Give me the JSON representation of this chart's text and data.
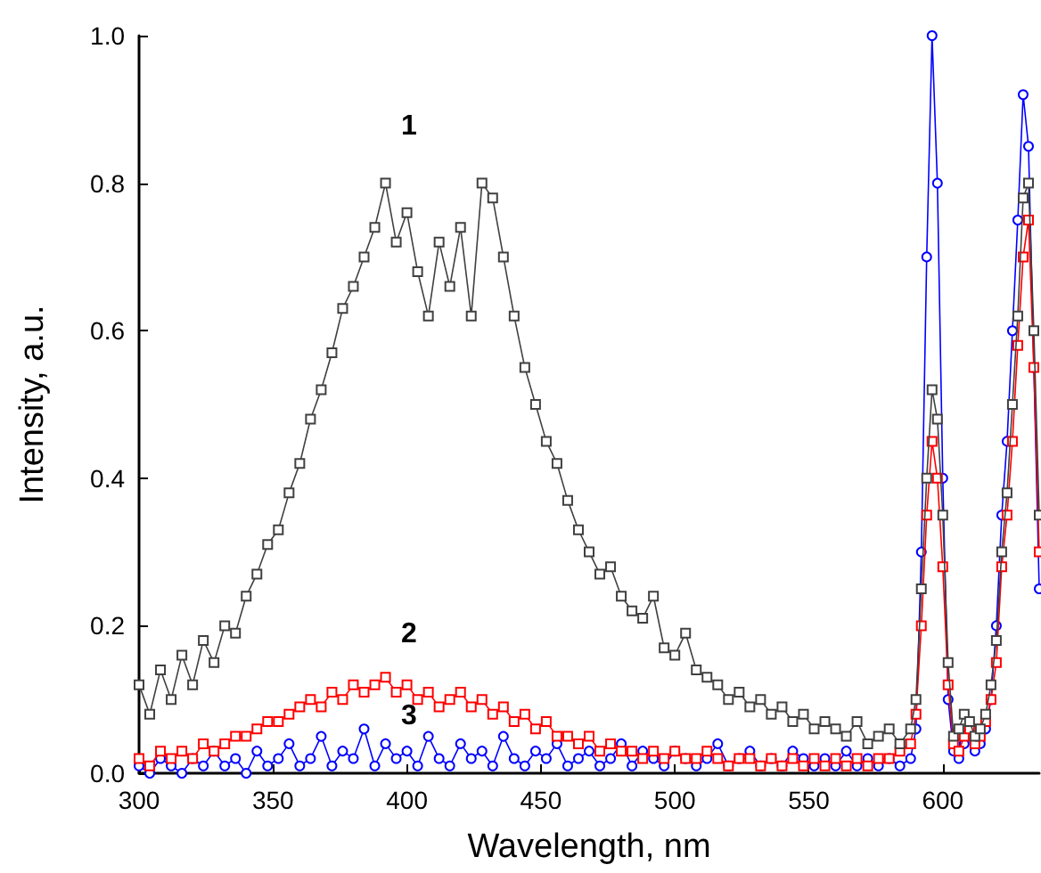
{
  "chart_data": {
    "type": "line",
    "xlabel": "Wavelength, nm",
    "ylabel": "Intensity, a.u.",
    "x": [
      300,
      304,
      308,
      312,
      316,
      320,
      324,
      328,
      332,
      336,
      340,
      344,
      348,
      352,
      356,
      360,
      364,
      368,
      372,
      376,
      380,
      384,
      388,
      392,
      396,
      400,
      404,
      408,
      412,
      416,
      420,
      424,
      428,
      432,
      436,
      440,
      444,
      448,
      452,
      456,
      460,
      464,
      468,
      472,
      476,
      480,
      484,
      488,
      492,
      496,
      500,
      504,
      508,
      512,
      516,
      520,
      524,
      528,
      532,
      536,
      540,
      544,
      548,
      552,
      556,
      560,
      564,
      568,
      572,
      576,
      580,
      584,
      588,
      590,
      592,
      594,
      596,
      598,
      600,
      602,
      604,
      606,
      608,
      610,
      612,
      614,
      616,
      618,
      620,
      622,
      624,
      626,
      628,
      630,
      632,
      634,
      636
    ],
    "series": [
      {
        "color": "#404040",
        "marker": "square",
        "values": [
          0.12,
          0.08,
          0.14,
          0.1,
          0.16,
          0.12,
          0.18,
          0.15,
          0.2,
          0.19,
          0.24,
          0.27,
          0.31,
          0.33,
          0.38,
          0.42,
          0.48,
          0.52,
          0.57,
          0.63,
          0.66,
          0.7,
          0.74,
          0.8,
          0.72,
          0.76,
          0.68,
          0.62,
          0.72,
          0.66,
          0.74,
          0.62,
          0.8,
          0.78,
          0.7,
          0.62,
          0.55,
          0.5,
          0.45,
          0.42,
          0.37,
          0.33,
          0.3,
          0.27,
          0.28,
          0.24,
          0.22,
          0.21,
          0.24,
          0.17,
          0.16,
          0.19,
          0.14,
          0.13,
          0.12,
          0.1,
          0.11,
          0.09,
          0.1,
          0.08,
          0.09,
          0.07,
          0.08,
          0.06,
          0.07,
          0.06,
          0.05,
          0.07,
          0.04,
          0.05,
          0.06,
          0.04,
          0.06,
          0.1,
          0.25,
          0.4,
          0.52,
          0.48,
          0.35,
          0.15,
          0.05,
          0.06,
          0.08,
          0.07,
          0.05,
          0.06,
          0.08,
          0.12,
          0.18,
          0.3,
          0.38,
          0.5,
          0.62,
          0.78,
          0.8,
          0.6,
          0.35
        ]
      },
      {
        "color": "#ff0000",
        "marker": "square",
        "values": [
          0.02,
          0.01,
          0.03,
          0.02,
          0.03,
          0.02,
          0.04,
          0.03,
          0.04,
          0.05,
          0.05,
          0.06,
          0.07,
          0.07,
          0.08,
          0.09,
          0.1,
          0.09,
          0.11,
          0.1,
          0.12,
          0.11,
          0.12,
          0.13,
          0.11,
          0.12,
          0.1,
          0.11,
          0.09,
          0.1,
          0.11,
          0.09,
          0.1,
          0.08,
          0.09,
          0.07,
          0.08,
          0.06,
          0.07,
          0.05,
          0.05,
          0.04,
          0.05,
          0.03,
          0.04,
          0.03,
          0.03,
          0.02,
          0.03,
          0.02,
          0.03,
          0.02,
          0.02,
          0.03,
          0.02,
          0.01,
          0.02,
          0.02,
          0.01,
          0.02,
          0.01,
          0.02,
          0.01,
          0.02,
          0.01,
          0.02,
          0.01,
          0.02,
          0.01,
          0.02,
          0.02,
          0.03,
          0.04,
          0.08,
          0.2,
          0.35,
          0.45,
          0.4,
          0.28,
          0.12,
          0.04,
          0.03,
          0.05,
          0.06,
          0.04,
          0.05,
          0.07,
          0.1,
          0.15,
          0.28,
          0.35,
          0.45,
          0.58,
          0.7,
          0.75,
          0.55,
          0.3
        ]
      },
      {
        "color": "#0000ff",
        "marker": "circle",
        "values": [
          0.01,
          0,
          0.02,
          0.01,
          0,
          0.02,
          0.01,
          0.03,
          0.01,
          0.02,
          0,
          0.03,
          0.01,
          0.02,
          0.04,
          0.01,
          0.02,
          0.05,
          0.01,
          0.03,
          0.02,
          0.06,
          0.01,
          0.04,
          0.02,
          0.03,
          0.01,
          0.05,
          0.02,
          0.01,
          0.04,
          0.02,
          0.03,
          0.01,
          0.05,
          0.02,
          0.01,
          0.03,
          0.02,
          0.04,
          0.01,
          0.02,
          0.03,
          0.01,
          0.02,
          0.04,
          0.01,
          0.03,
          0.02,
          0.01,
          0.03,
          0.02,
          0.01,
          0.02,
          0.04,
          0.01,
          0.02,
          0.03,
          0.01,
          0.02,
          0.01,
          0.03,
          0.02,
          0.01,
          0.02,
          0.01,
          0.03,
          0.01,
          0.02,
          0.01,
          0.02,
          0.01,
          0.02,
          0.06,
          0.3,
          0.7,
          1.0,
          0.8,
          0.4,
          0.1,
          0.03,
          0.02,
          0.04,
          0.05,
          0.03,
          0.04,
          0.06,
          0.1,
          0.2,
          0.35,
          0.45,
          0.6,
          0.75,
          0.92,
          0.85,
          0.55,
          0.25
        ]
      }
    ],
    "annotations": [
      "1",
      "2",
      "3"
    ],
    "xlim": [
      300,
      636
    ],
    "xticks": [
      300,
      350,
      400,
      450,
      500,
      550,
      600
    ],
    "ylim": [
      0,
      1
    ],
    "yticks": [
      {
        "value": 0,
        "label": "0.0"
      },
      0.2,
      0.4,
      0.6,
      0.8,
      {
        "value": 1,
        "label": "1.0"
      }
    ],
    "grid": false
  }
}
